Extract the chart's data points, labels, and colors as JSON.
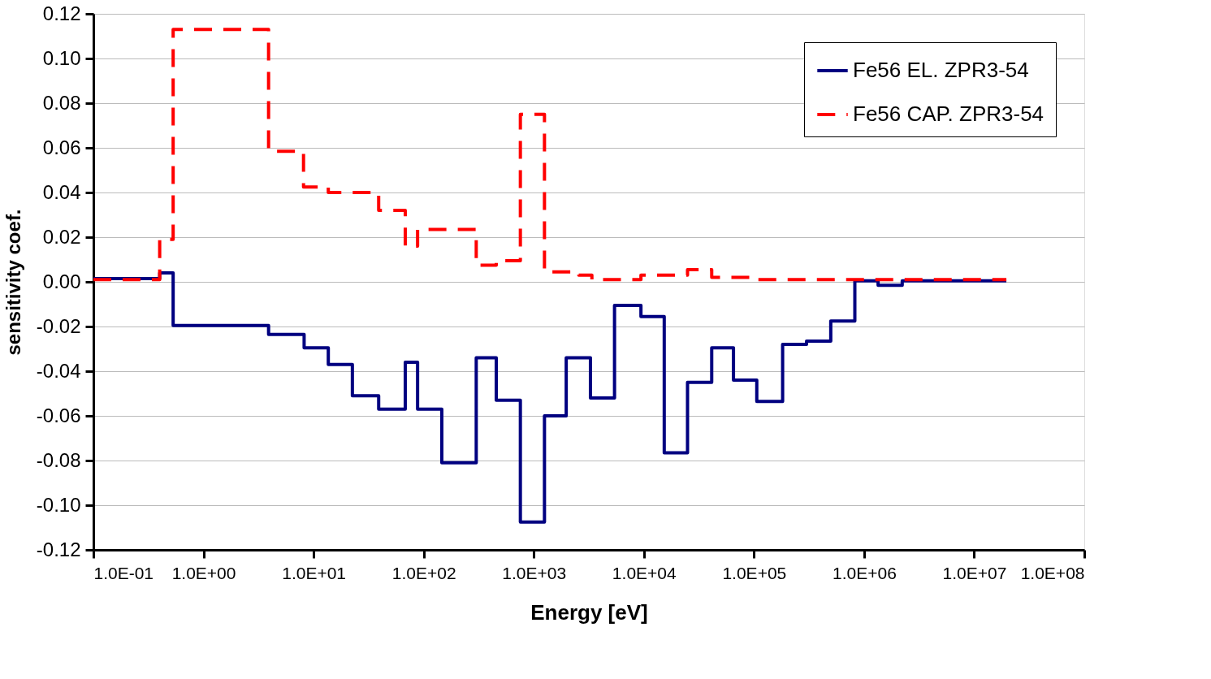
{
  "chart_data": {
    "type": "step",
    "xlabel": "Energy [eV]",
    "ylabel": "sensitivity coef.",
    "log": "x",
    "grid": "y",
    "legend": "top right",
    "xlim": [
      0.1,
      100000000
    ],
    "xticks": [
      {
        "value": 0.1,
        "label": "1.0E-01"
      },
      {
        "value": 1,
        "label": "1.0E+00"
      },
      {
        "value": 10,
        "label": "1.0E+01"
      },
      {
        "value": 100,
        "label": "1.0E+02"
      },
      {
        "value": 1000,
        "label": "1.0E+03"
      },
      {
        "value": 10000,
        "label": "1.0E+04"
      },
      {
        "value": 100000,
        "label": "1.0E+05"
      },
      {
        "value": 1000000,
        "label": "1.0E+06"
      },
      {
        "value": 10000000,
        "label": "1.0E+07"
      },
      {
        "value": 100000000,
        "label": "1.0E+08"
      }
    ],
    "ylim": [
      -0.12,
      0.12
    ],
    "yticks": [
      {
        "value": -0.12,
        "label": "-0.12"
      },
      {
        "value": -0.1,
        "label": "-0.10"
      },
      {
        "value": -0.08,
        "label": "-0.08"
      },
      {
        "value": -0.06,
        "label": "-0.06"
      },
      {
        "value": -0.04,
        "label": "-0.04"
      },
      {
        "value": -0.02,
        "label": "-0.02"
      },
      {
        "value": 0,
        "label": "0.00"
      },
      {
        "value": 0.02,
        "label": "0.02"
      },
      {
        "value": 0.04,
        "label": "0.04"
      },
      {
        "value": 0.06,
        "label": "0.06"
      },
      {
        "value": 0.08,
        "label": "0.08"
      },
      {
        "value": 0.1,
        "label": "0.10"
      },
      {
        "value": 0.12,
        "label": "0.12"
      }
    ],
    "series": [
      {
        "name": "Fe56 EL. ZPR3-54",
        "color": "#000080",
        "line_style": "solid",
        "x": [
          0.1,
          0.4,
          0.53,
          3.9,
          8.2,
          13.6,
          22.5,
          39,
          68,
          88,
          146,
          300,
          456,
          755,
          1250,
          1970,
          3270,
          5410,
          9400,
          15300,
          24900,
          41300,
          65100,
          106000,
          182000,
          300000,
          498000,
          824000,
          1340000,
          2220000,
          19600000
        ],
        "values": [
          0.0015,
          0.004,
          -0.0195,
          -0.0235,
          -0.0295,
          -0.037,
          -0.051,
          -0.057,
          -0.036,
          -0.057,
          -0.081,
          -0.034,
          -0.053,
          -0.1075,
          -0.06,
          -0.034,
          -0.052,
          -0.0105,
          -0.0155,
          -0.0765,
          -0.045,
          -0.0295,
          -0.044,
          -0.0535,
          -0.028,
          -0.0265,
          -0.0175,
          0.0005,
          -0.0015,
          0.0005,
          0.0005
        ]
      },
      {
        "name": "Fe56 CAP. ZPR3-54",
        "color": "#ff0000",
        "line_style": "dashed",
        "x": [
          0.1,
          0.4,
          0.53,
          3.9,
          8.1,
          13.6,
          39,
          68,
          88,
          300,
          456,
          755,
          1250,
          2560,
          3370,
          9400,
          24900,
          41300,
          106000,
          19600000
        ],
        "values": [
          0.001,
          0.019,
          0.113,
          0.0585,
          0.0425,
          0.04,
          0.032,
          0.016,
          0.0235,
          0.0075,
          0.0095,
          0.075,
          0.0045,
          0.003,
          0.001,
          0.003,
          0.0055,
          0.002,
          0.001,
          0.001
        ]
      }
    ]
  }
}
